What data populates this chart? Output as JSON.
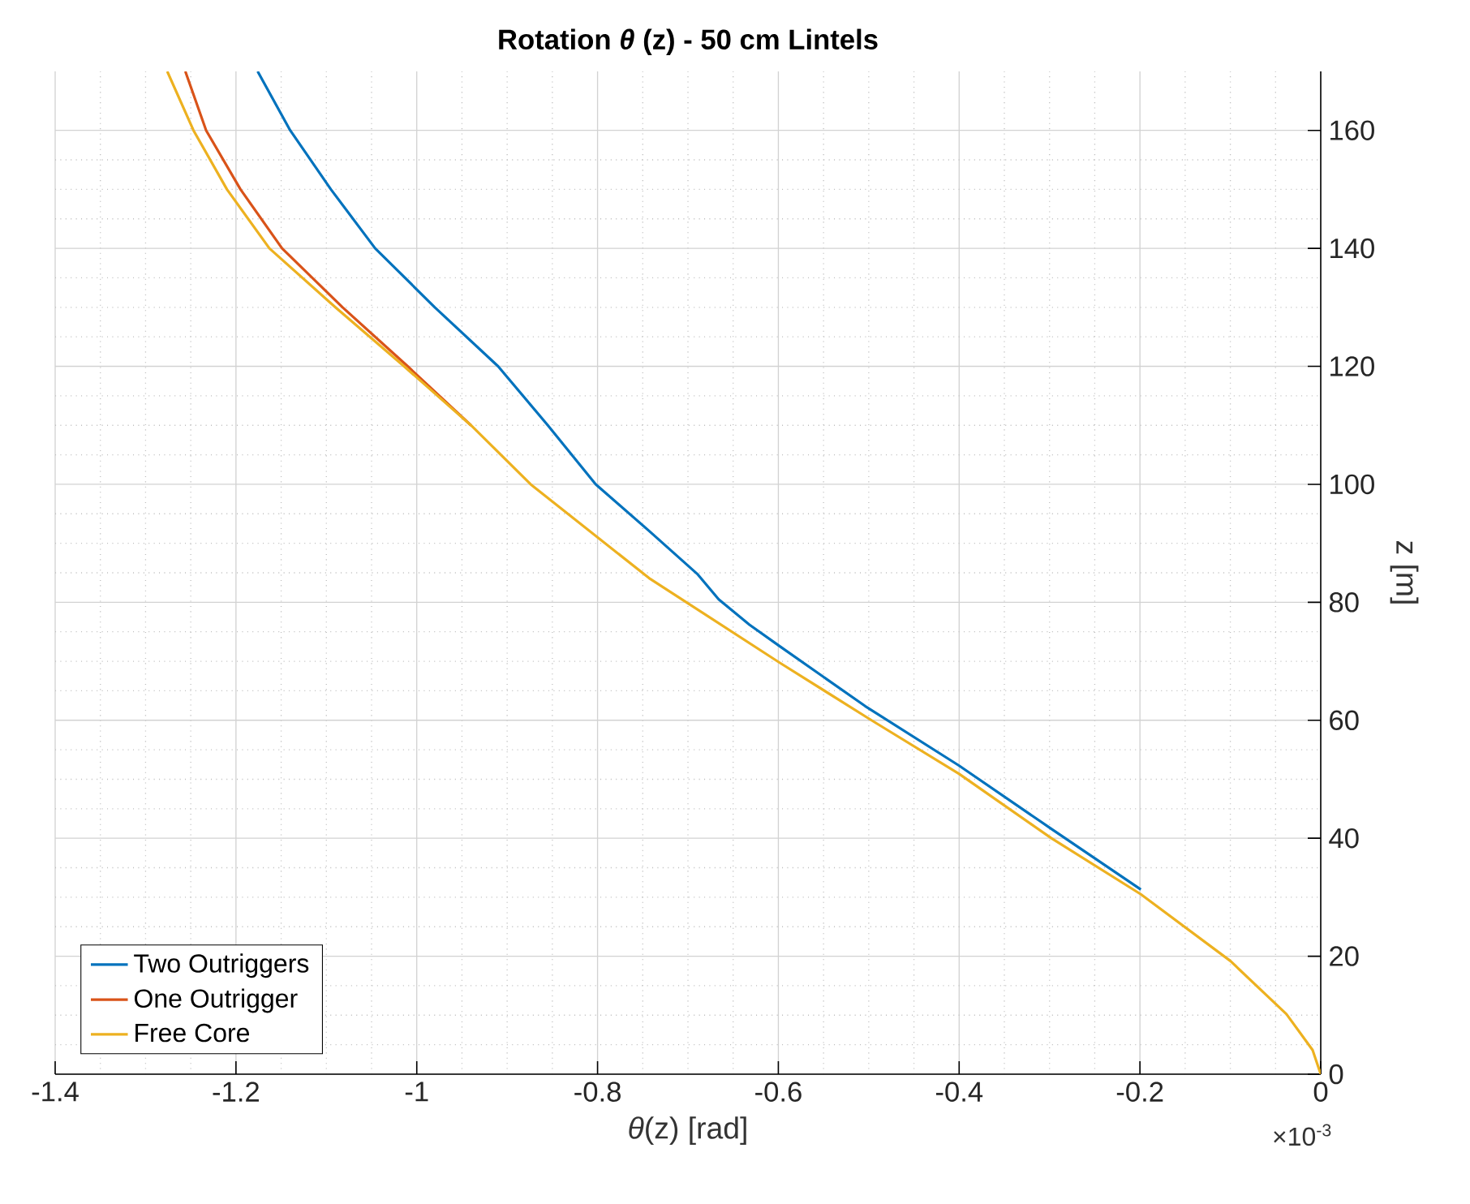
{
  "chart_data": {
    "type": "line",
    "title": "Rotation *θ* (z) - 50 cm Lintels",
    "xlabel": "*θ*(z) [rad]",
    "ylabel": "z [m]",
    "annotations": [
      "×10$^{-3}$"
    ],
    "xlim": [
      -1.4,
      0
    ],
    "ylim": [
      0,
      170
    ],
    "xticks": [
      -1.4,
      -1.2,
      -1,
      -0.8,
      -0.6,
      -0.4,
      -0.2,
      0
    ],
    "yticks": [
      0,
      20,
      40,
      60,
      80,
      100,
      120,
      140,
      160
    ],
    "grid": true,
    "legend": "bottom left",
    "marker": "none",
    "line_style": "solid",
    "series": [
      {
        "name": "Two Outriggers",
        "color": "#0072bd",
        "x": [
          null,
          null,
          null,
          null,
          -0.199,
          -0.3,
          -0.4,
          -0.504,
          -0.599,
          -0.632,
          -0.666,
          -0.689,
          -0.743,
          -0.802,
          -0.855,
          -0.91,
          -0.98,
          -1.046,
          -1.095,
          -1.14,
          -1.176
        ],
        "values": [
          null,
          null,
          null,
          null,
          31.3,
          41.8,
          52.3,
          62.4,
          72.6,
          76.2,
          80.5,
          84.7,
          92.1,
          100,
          110,
          120,
          130,
          140,
          150,
          160,
          170
        ]
      },
      {
        "name": "One Outrigger",
        "color": "#d95319",
        "x": [
          null,
          null,
          null,
          null,
          null,
          null,
          null,
          null,
          null,
          null,
          null,
          -0.94,
          -1.01,
          -1.082,
          -1.149,
          -1.195,
          -1.233,
          -1.256
        ],
        "values": [
          null,
          null,
          null,
          null,
          null,
          null,
          null,
          null,
          null,
          null,
          null,
          110,
          120,
          130,
          140,
          150,
          160,
          170
        ]
      },
      {
        "name": "Free Core",
        "color": "#edb120",
        "x": [
          0,
          -0.009,
          -0.038,
          -0.1,
          -0.199,
          -0.298,
          -0.4,
          -0.497,
          -0.599,
          -0.743,
          -0.874,
          -0.94,
          -1.014,
          -1.09,
          -1.163,
          -1.21,
          -1.247,
          -1.276
        ],
        "values": [
          0,
          4.1,
          10.2,
          19.2,
          30.5,
          40,
          50.9,
          60,
          69.8,
          84.1,
          100,
          110,
          120,
          130,
          140,
          150,
          160,
          170
        ]
      }
    ]
  }
}
